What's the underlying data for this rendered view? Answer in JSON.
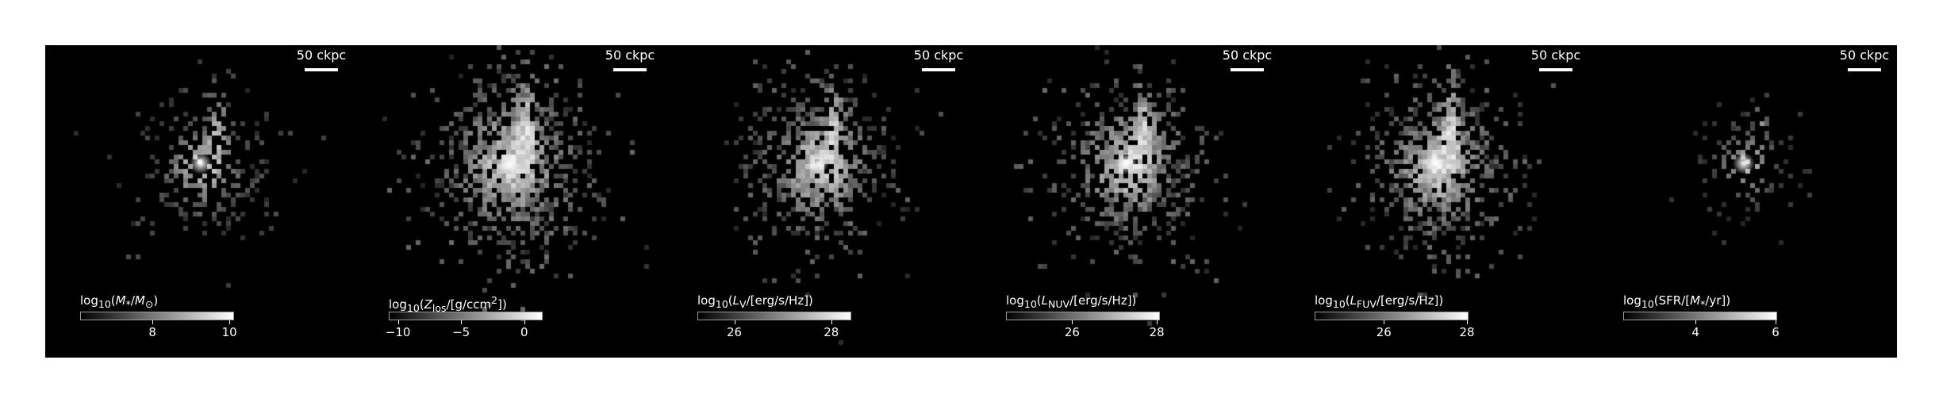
{
  "scale_bar_label": "50 ckpc",
  "panels": [
    {
      "id": "stellar-mass",
      "colorbar_label": "log<sub>10</sub>(<i>M</i><sub>*</sub>/<i>M</i><sub>⊙</sub>)",
      "ticks": [
        {
          "label": "8",
          "frac": 0.47
        },
        {
          "label": "10",
          "frac": 0.97
        }
      ],
      "map": {
        "density": 0.55,
        "spread": 1.0,
        "seed": 11
      }
    },
    {
      "id": "metallicity",
      "colorbar_label": "log<sub>10</sub>(<i>Z</i><sub>los</sub>/[g/ccm<sup>2</sup>])",
      "ticks": [
        {
          "label": "−10",
          "frac": 0.06
        },
        {
          "label": "−5",
          "frac": 0.47
        },
        {
          "label": "0",
          "frac": 0.88
        }
      ],
      "map": {
        "density": 0.9,
        "spread": 1.25,
        "seed": 23
      }
    },
    {
      "id": "v-band",
      "colorbar_label": "log<sub>10</sub>(<i>L</i><sub>V</sub>/[erg/s/Hz])",
      "ticks": [
        {
          "label": "26",
          "frac": 0.24
        },
        {
          "label": "28",
          "frac": 0.87
        }
      ],
      "map": {
        "density": 0.8,
        "spread": 1.15,
        "seed": 37
      }
    },
    {
      "id": "nuv-band",
      "colorbar_label": "log<sub>10</sub>(<i>L</i><sub>NUV</sub>/[erg/s/Hz])",
      "ticks": [
        {
          "label": "26",
          "frac": 0.43
        },
        {
          "label": "28",
          "frac": 0.98
        }
      ],
      "map": {
        "density": 0.85,
        "spread": 1.15,
        "seed": 41
      }
    },
    {
      "id": "fuv-band",
      "colorbar_label": "log<sub>10</sub>(<i>L</i><sub>FUV</sub>/[erg/s/Hz])",
      "ticks": [
        {
          "label": "26",
          "frac": 0.45
        },
        {
          "label": "28",
          "frac": 0.99
        }
      ],
      "map": {
        "density": 0.85,
        "spread": 1.15,
        "seed": 53
      }
    },
    {
      "id": "sfr",
      "colorbar_label": "log<sub>10</sub>(SFR/[<i>M</i><sub>*</sub>/yr])",
      "ticks": [
        {
          "label": "4",
          "frac": 0.47
        },
        {
          "label": "6",
          "frac": 0.99
        }
      ],
      "map": {
        "density": 0.35,
        "spread": 0.75,
        "seed": 67
      }
    }
  ]
}
